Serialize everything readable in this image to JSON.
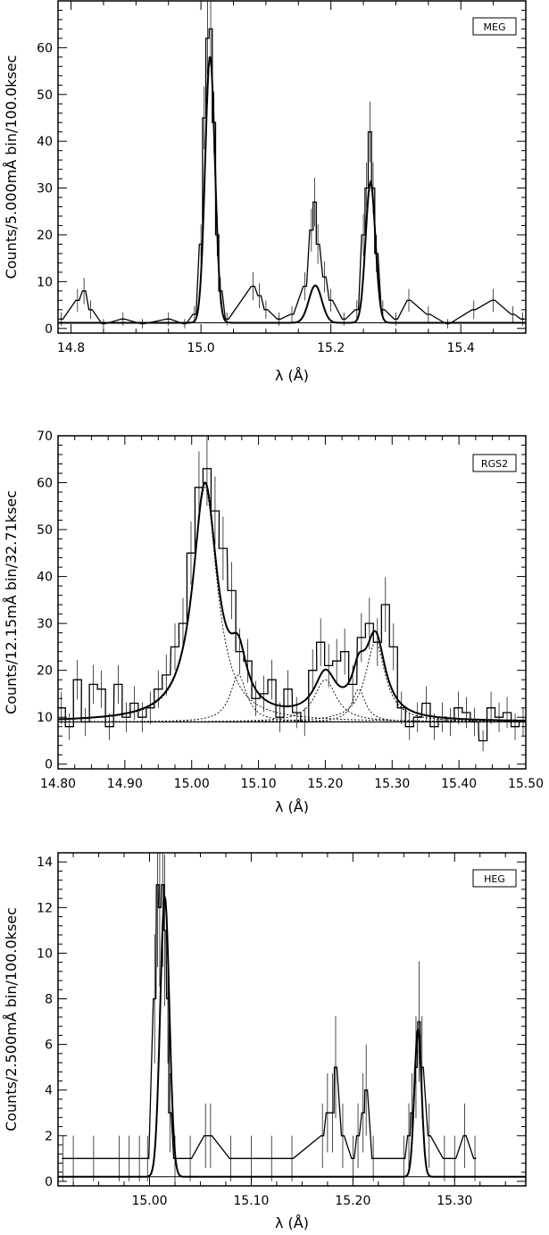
{
  "chart_data": [
    {
      "type": "line",
      "legend": "MEG",
      "legend_position": "top-right",
      "xlabel": "λ (Å)",
      "ylabel": "Counts/5.000mÅ bin/100.0ksec",
      "xlim": [
        14.78,
        15.5
      ],
      "ylim": [
        -1,
        70
      ],
      "xticks": [
        14.8,
        15.0,
        15.2,
        15.4
      ],
      "xtick_labels": [
        "14.8",
        "15.0",
        "15.2",
        "15.4"
      ],
      "yticks": [
        0,
        10,
        20,
        30,
        40,
        50,
        60
      ],
      "ytick_labels": [
        "0",
        "10",
        "20",
        "30",
        "40",
        "50",
        "60"
      ],
      "grid": false,
      "baseline": 1.2,
      "model_peaks": [
        {
          "center": 15.014,
          "height": 57,
          "sigma": 0.0075
        },
        {
          "center": 15.176,
          "height": 8,
          "sigma": 0.01
        },
        {
          "center": 15.261,
          "height": 30,
          "sigma": 0.0075
        }
      ],
      "histogram_bin_width": 0.005,
      "histogram_points": [
        [
          14.785,
          2
        ],
        [
          14.81,
          6
        ],
        [
          14.82,
          8
        ],
        [
          14.83,
          4
        ],
        [
          14.85,
          1
        ],
        [
          14.88,
          2
        ],
        [
          14.91,
          1
        ],
        [
          14.95,
          2
        ],
        [
          14.975,
          1
        ],
        [
          14.99,
          3
        ],
        [
          15.0,
          18
        ],
        [
          15.005,
          45
        ],
        [
          15.01,
          62
        ],
        [
          15.015,
          64
        ],
        [
          15.02,
          44
        ],
        [
          15.025,
          20
        ],
        [
          15.03,
          8
        ],
        [
          15.04,
          2
        ],
        [
          15.08,
          9
        ],
        [
          15.09,
          7
        ],
        [
          15.1,
          4
        ],
        [
          15.12,
          2
        ],
        [
          15.14,
          3
        ],
        [
          15.16,
          9
        ],
        [
          15.17,
          21
        ],
        [
          15.175,
          27
        ],
        [
          15.18,
          18
        ],
        [
          15.19,
          11
        ],
        [
          15.2,
          6
        ],
        [
          15.22,
          2
        ],
        [
          15.24,
          4
        ],
        [
          15.25,
          20
        ],
        [
          15.255,
          30
        ],
        [
          15.26,
          42
        ],
        [
          15.265,
          30
        ],
        [
          15.27,
          16
        ],
        [
          15.28,
          4
        ],
        [
          15.3,
          2
        ],
        [
          15.32,
          6
        ],
        [
          15.35,
          3
        ],
        [
          15.38,
          1
        ],
        [
          15.42,
          4
        ],
        [
          15.45,
          6
        ],
        [
          15.48,
          3
        ],
        [
          15.495,
          2
        ]
      ]
    },
    {
      "type": "line",
      "legend": "RGS2",
      "legend_position": "top-right",
      "xlabel": "λ (Å)",
      "ylabel": "Counts/12.15mÅ bin/32.71ksec",
      "xlim": [
        14.8,
        15.5
      ],
      "ylim": [
        -1,
        70
      ],
      "xticks": [
        14.8,
        14.9,
        15.0,
        15.1,
        15.2,
        15.3,
        15.4,
        15.5
      ],
      "xtick_labels": [
        "14.80",
        "14.90",
        "15.00",
        "15.10",
        "15.20",
        "15.30",
        "15.40",
        "15.50"
      ],
      "yticks": [
        0,
        10,
        20,
        30,
        40,
        50,
        60,
        70
      ],
      "ytick_labels": [
        "0",
        "10",
        "20",
        "30",
        "40",
        "50",
        "60",
        "70"
      ],
      "grid": false,
      "baseline": 9,
      "model_peaks": [
        {
          "center": 15.02,
          "height": 50,
          "gamma": 0.022
        },
        {
          "center": 15.07,
          "height": 10,
          "gamma": 0.015
        },
        {
          "center": 15.2,
          "height": 9,
          "gamma": 0.02
        },
        {
          "center": 15.25,
          "height": 7,
          "gamma": 0.012
        },
        {
          "center": 15.275,
          "height": 17,
          "gamma": 0.018
        }
      ],
      "histogram_bin_width": 0.01215,
      "histogram_points": [
        [
          14.805,
          12
        ],
        [
          14.817,
          8
        ],
        [
          14.829,
          18
        ],
        [
          14.841,
          9
        ],
        [
          14.853,
          17
        ],
        [
          14.865,
          16
        ],
        [
          14.877,
          8
        ],
        [
          14.89,
          17
        ],
        [
          14.902,
          10
        ],
        [
          14.914,
          13
        ],
        [
          14.926,
          10
        ],
        [
          14.938,
          12
        ],
        [
          14.95,
          16
        ],
        [
          14.962,
          19
        ],
        [
          14.975,
          25
        ],
        [
          14.987,
          30
        ],
        [
          14.999,
          45
        ],
        [
          15.011,
          59
        ],
        [
          15.023,
          63
        ],
        [
          15.035,
          54
        ],
        [
          15.047,
          46
        ],
        [
          15.06,
          37
        ],
        [
          15.072,
          24
        ],
        [
          15.084,
          22
        ],
        [
          15.096,
          14
        ],
        [
          15.108,
          15
        ],
        [
          15.12,
          18
        ],
        [
          15.132,
          10
        ],
        [
          15.144,
          16
        ],
        [
          15.157,
          11
        ],
        [
          15.169,
          9
        ],
        [
          15.181,
          20
        ],
        [
          15.193,
          26
        ],
        [
          15.205,
          21
        ],
        [
          15.217,
          22
        ],
        [
          15.229,
          24
        ],
        [
          15.241,
          17
        ],
        [
          15.254,
          27
        ],
        [
          15.266,
          30
        ],
        [
          15.278,
          26
        ],
        [
          15.29,
          34
        ],
        [
          15.302,
          25
        ],
        [
          15.314,
          12
        ],
        [
          15.326,
          8
        ],
        [
          15.338,
          10
        ],
        [
          15.351,
          13
        ],
        [
          15.363,
          8
        ],
        [
          15.375,
          10
        ],
        [
          15.387,
          9
        ],
        [
          15.399,
          12
        ],
        [
          15.411,
          11
        ],
        [
          15.423,
          9
        ],
        [
          15.436,
          5
        ],
        [
          15.448,
          12
        ],
        [
          15.46,
          10
        ],
        [
          15.472,
          11
        ],
        [
          15.484,
          8
        ],
        [
          15.496,
          9
        ]
      ]
    },
    {
      "type": "line",
      "legend": "HEG",
      "legend_position": "top-right",
      "xlabel": "λ (Å)",
      "ylabel": "Counts/2.500mÅ bin/100.0ksec",
      "xlim": [
        14.91,
        15.37
      ],
      "ylim": [
        -0.2,
        14.4
      ],
      "xticks": [
        15.0,
        15.1,
        15.2,
        15.3
      ],
      "xtick_labels": [
        "15.00",
        "15.10",
        "15.20",
        "15.30"
      ],
      "yticks": [
        0,
        2,
        4,
        6,
        8,
        10,
        12,
        14
      ],
      "ytick_labels": [
        "0",
        "2",
        "4",
        "6",
        "8",
        "10",
        "12",
        "14"
      ],
      "grid": false,
      "baseline": 0.2,
      "model_peaks": [
        {
          "center": 15.015,
          "height": 12.3,
          "sigma": 0.0045
        },
        {
          "center": 15.264,
          "height": 6.5,
          "sigma": 0.0035
        }
      ],
      "histogram_bin_width": 0.0025,
      "histogram_points": [
        [
          14.915,
          1
        ],
        [
          14.925,
          1
        ],
        [
          14.945,
          1
        ],
        [
          14.97,
          1
        ],
        [
          14.98,
          1
        ],
        [
          14.99,
          1
        ],
        [
          14.998,
          1
        ],
        [
          15.005,
          8
        ],
        [
          15.008,
          13
        ],
        [
          15.01,
          12
        ],
        [
          15.013,
          13
        ],
        [
          15.015,
          11
        ],
        [
          15.018,
          8
        ],
        [
          15.02,
          3
        ],
        [
          15.025,
          1
        ],
        [
          15.04,
          1
        ],
        [
          15.055,
          2
        ],
        [
          15.06,
          2
        ],
        [
          15.08,
          1
        ],
        [
          15.1,
          1
        ],
        [
          15.12,
          1
        ],
        [
          15.14,
          1
        ],
        [
          15.17,
          2
        ],
        [
          15.175,
          3
        ],
        [
          15.18,
          3
        ],
        [
          15.183,
          5
        ],
        [
          15.19,
          2
        ],
        [
          15.2,
          1
        ],
        [
          15.205,
          2
        ],
        [
          15.21,
          3
        ],
        [
          15.213,
          4
        ],
        [
          15.22,
          1
        ],
        [
          15.25,
          1
        ],
        [
          15.255,
          2
        ],
        [
          15.258,
          3
        ],
        [
          15.262,
          5
        ],
        [
          15.265,
          7
        ],
        [
          15.268,
          5
        ],
        [
          15.275,
          2
        ],
        [
          15.29,
          1
        ],
        [
          15.3,
          1
        ],
        [
          15.31,
          2
        ],
        [
          15.32,
          1
        ]
      ]
    }
  ]
}
